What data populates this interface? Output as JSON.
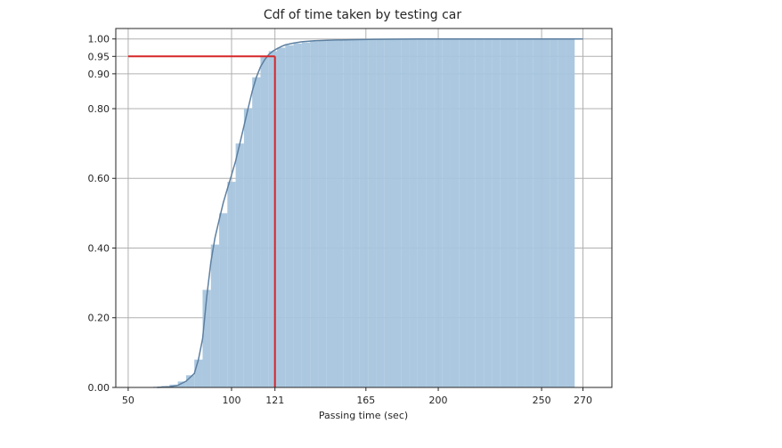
{
  "chart_data": {
    "type": "bar",
    "title": "Cdf of time taken by testing car",
    "xlabel": "Passing time (sec)",
    "ylabel": "",
    "xlim": [
      44,
      284
    ],
    "ylim": [
      0,
      1.03
    ],
    "xticks": [
      50,
      100,
      121,
      165,
      200,
      250,
      270
    ],
    "yticks": [
      0.0,
      0.2,
      0.4,
      0.6,
      0.8,
      0.9,
      0.95,
      1.0
    ],
    "ytick_labels": [
      "0.00",
      "0.20",
      "0.40",
      "0.60",
      "0.80",
      "0.90",
      "0.95",
      "1.00"
    ],
    "grid": true,
    "colors": {
      "bars": "#a6c5de",
      "curve": "#5d7fa0",
      "marker": "#d62728",
      "grid": "#b0b0b0"
    },
    "histogram_cumulative": {
      "bin_edges": [
        50,
        54,
        58,
        62,
        66,
        70,
        74,
        78,
        82,
        86,
        90,
        94,
        98,
        102,
        106,
        110,
        114,
        118,
        122,
        126,
        130,
        134,
        138,
        142,
        146,
        150,
        154,
        158,
        162,
        166,
        170,
        174,
        178,
        182,
        186,
        190,
        194,
        198,
        202,
        206,
        210,
        214,
        218,
        222,
        226,
        230,
        234,
        238,
        242,
        246,
        250,
        254,
        258,
        262,
        266,
        270
      ],
      "values": [
        0.0,
        0.0,
        0.001,
        0.002,
        0.004,
        0.008,
        0.017,
        0.035,
        0.08,
        0.28,
        0.41,
        0.5,
        0.59,
        0.7,
        0.8,
        0.89,
        0.95,
        0.965,
        0.975,
        0.982,
        0.987,
        0.99,
        0.993,
        0.995,
        0.996,
        0.997,
        0.998,
        0.998,
        0.999,
        0.999,
        0.999,
        1.0,
        1.0,
        1.0,
        1.0,
        1.0,
        1.0,
        1.0,
        1.0,
        1.0,
        1.0,
        1.0,
        1.0,
        1.0,
        1.0,
        1.0,
        1.0,
        1.0,
        1.0,
        1.0,
        1.0,
        1.0,
        1.0,
        1.0,
        0.0
      ]
    },
    "cdf_curve": {
      "x": [
        64,
        70,
        74,
        78,
        82,
        84,
        86,
        88,
        90,
        92,
        94,
        96,
        98,
        100,
        102,
        104,
        106,
        108,
        110,
        112,
        114,
        116,
        118,
        120,
        122,
        124,
        126,
        130,
        134,
        140,
        150,
        160,
        170,
        190,
        220,
        250,
        270
      ],
      "y": [
        0.0,
        0.002,
        0.006,
        0.018,
        0.04,
        0.08,
        0.14,
        0.26,
        0.36,
        0.43,
        0.48,
        0.53,
        0.57,
        0.61,
        0.65,
        0.7,
        0.75,
        0.8,
        0.85,
        0.89,
        0.92,
        0.94,
        0.955,
        0.965,
        0.972,
        0.978,
        0.983,
        0.988,
        0.992,
        0.995,
        0.997,
        0.998,
        0.999,
        1.0,
        1.0,
        1.0,
        1.0
      ]
    },
    "marker": {
      "x": 121,
      "y": 0.95
    }
  }
}
